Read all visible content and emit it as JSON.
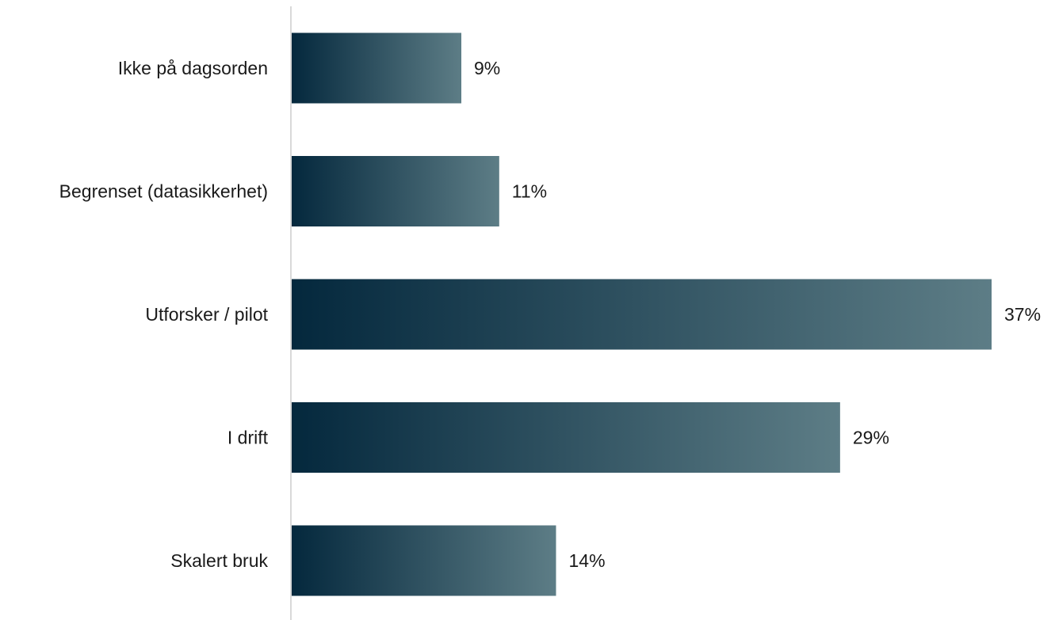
{
  "chart_data": {
    "type": "bar",
    "orientation": "horizontal",
    "categories": [
      "Ikke på dagsorden",
      "Begrenset (datasikkerhet)",
      "Utforsker / pilot",
      "I drift",
      "Skalert bruk"
    ],
    "values": [
      9,
      11,
      37,
      29,
      14
    ],
    "value_labels": [
      "9%",
      "11%",
      "37%",
      "29%",
      "14%"
    ],
    "unit": "%",
    "xlim": [
      0,
      37
    ],
    "grid": false,
    "legend": "none",
    "title": "",
    "xlabel": "",
    "ylabel": ""
  },
  "colors": {
    "bar_gradient_start": "#04283d",
    "bar_gradient_end": "#5d7d86",
    "axis_line": "#d9d9d9",
    "text": "#1a1a1a",
    "background": "#ffffff"
  }
}
